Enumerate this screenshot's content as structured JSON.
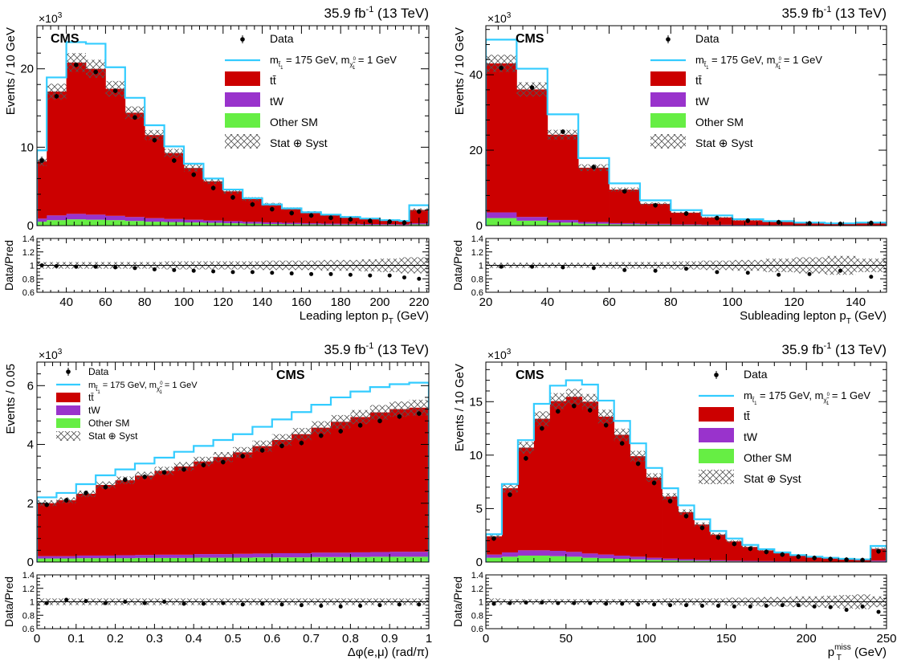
{
  "colors": {
    "ttbar": "#cc0000",
    "tW": "#9933cc",
    "other_sm": "#66ee44",
    "signal": "#33ccff",
    "data": "#000000",
    "band": "#555555"
  },
  "chart_data": [
    {
      "type": "bar",
      "experiment": "CMS",
      "lumi_text": "35.9 fb",
      "lumi_sup": "-1",
      "energy_text": " (13 TeV)",
      "yexp": "×10",
      "yexp_sup": "3",
      "xlabel_main": "Leading lepton p",
      "xlabel_sub": "T",
      "xlabel_unit": " (GeV)",
      "ylabel": "Events / 10 GeV",
      "ratio_ylabel": "Data/Pred",
      "xlim": [
        25,
        225
      ],
      "ylim": [
        0,
        25.5
      ],
      "yticks": [
        0,
        10,
        20
      ],
      "xticks": [
        40,
        60,
        80,
        100,
        120,
        140,
        160,
        180,
        200,
        220
      ],
      "ratio_ylim": [
        0.6,
        1.4
      ],
      "ratio_yticks": [
        "0.6",
        "0.8",
        "1",
        "1.2",
        "1.4"
      ],
      "bin_edges": [
        25,
        30,
        40,
        50,
        60,
        70,
        80,
        90,
        100,
        110,
        120,
        130,
        140,
        150,
        160,
        170,
        180,
        190,
        200,
        210,
        215,
        225
      ],
      "legend": {
        "data": "Data",
        "signal_prefix": "m",
        "signal_sub1": "t̃",
        "signal_sub2": "1",
        "signal_mid": " = 175 GeV, m",
        "signal_sub3": "χ̃",
        "signal_sub4": "1",
        "signal_sup4": "0",
        "signal_suffix": " = 1 GeV",
        "ttbar": "tt̄",
        "tW": "tW",
        "other_sm": "Other SM",
        "band": "Stat ⊕ Syst"
      },
      "series": {
        "other_sm": [
          0.5,
          0.7,
          0.8,
          0.75,
          0.7,
          0.6,
          0.5,
          0.45,
          0.4,
          0.35,
          0.3,
          0.25,
          0.2,
          0.18,
          0.15,
          0.13,
          0.12,
          0.1,
          0.09,
          0.08,
          0.15
        ],
        "tW": [
          0.4,
          0.6,
          0.7,
          0.65,
          0.55,
          0.5,
          0.45,
          0.4,
          0.35,
          0.3,
          0.27,
          0.23,
          0.2,
          0.17,
          0.15,
          0.13,
          0.11,
          0.1,
          0.09,
          0.08,
          0.15
        ],
        "ttbar": [
          7.3,
          15.8,
          19.3,
          18.6,
          16.2,
          13.3,
          10.6,
          8.4,
          6.6,
          5.0,
          3.8,
          2.9,
          2.3,
          1.8,
          1.4,
          1.1,
          0.9,
          0.7,
          0.55,
          0.4,
          1.7
        ],
        "band_half": [
          0.6,
          1.0,
          1.2,
          1.15,
          1.0,
          0.8,
          0.65,
          0.55,
          0.45,
          0.35,
          0.3,
          0.25,
          0.2,
          0.17,
          0.15,
          0.12,
          0.1,
          0.09,
          0.08,
          0.07,
          0.2
        ],
        "signal": [
          9.6,
          18.9,
          23.4,
          23.2,
          20.2,
          16.3,
          12.8,
          10.1,
          7.9,
          6.0,
          4.6,
          3.5,
          2.7,
          2.2,
          1.7,
          1.4,
          1.1,
          0.9,
          0.7,
          0.6,
          2.6
        ],
        "data": [
          8.3,
          16.5,
          20.5,
          19.6,
          17.2,
          13.8,
          10.9,
          8.3,
          6.5,
          4.8,
          3.6,
          2.7,
          2.1,
          1.6,
          1.3,
          1.0,
          0.8,
          0.6,
          0.5,
          0.38,
          1.8
        ],
        "ratio": [
          1.0,
          0.99,
          0.98,
          0.98,
          0.97,
          0.96,
          0.94,
          0.93,
          0.92,
          0.91,
          0.9,
          0.9,
          0.89,
          0.88,
          0.87,
          0.87,
          0.86,
          0.85,
          0.85,
          0.82,
          0.8
        ],
        "ratio_band": [
          0.05,
          0.05,
          0.05,
          0.05,
          0.05,
          0.05,
          0.05,
          0.06,
          0.06,
          0.06,
          0.06,
          0.06,
          0.07,
          0.07,
          0.07,
          0.08,
          0.08,
          0.09,
          0.1,
          0.12,
          0.12
        ]
      }
    },
    {
      "type": "bar",
      "experiment": "CMS",
      "lumi_text": "35.9 fb",
      "lumi_sup": "-1",
      "energy_text": " (13 TeV)",
      "yexp": "×10",
      "yexp_sup": "3",
      "xlabel_main": "Subleading lepton p",
      "xlabel_sub": "T",
      "xlabel_unit": " (GeV)",
      "ylabel": "Events / 10 GeV",
      "ratio_ylabel": "Data/Pred",
      "xlim": [
        20,
        150
      ],
      "ylim": [
        0,
        53
      ],
      "yticks": [
        0,
        20,
        40
      ],
      "xticks": [
        20,
        40,
        60,
        80,
        100,
        120,
        140
      ],
      "ratio_ylim": [
        0.6,
        1.4
      ],
      "ratio_yticks": [
        "0.6",
        "0.8",
        "1",
        "1.2",
        "1.4"
      ],
      "bin_edges": [
        20,
        30,
        40,
        50,
        60,
        70,
        80,
        90,
        100,
        110,
        120,
        130,
        140,
        150
      ],
      "legend": {
        "data": "Data",
        "signal_prefix": "m",
        "signal_sub1": "t̃",
        "signal_sub2": "1",
        "signal_mid": " = 175 GeV, m",
        "signal_sub3": "χ̃",
        "signal_sub4": "1",
        "signal_sup4": "0",
        "signal_suffix": " = 1 GeV",
        "ttbar": "tt̄",
        "tW": "tW",
        "other_sm": "Other SM",
        "band": "Stat ⊕ Syst"
      },
      "series": {
        "other_sm": [
          2.0,
          1.3,
          0.8,
          0.5,
          0.35,
          0.25,
          0.18,
          0.13,
          0.1,
          0.08,
          0.06,
          0.05,
          0.06
        ],
        "tW": [
          1.5,
          1.0,
          0.7,
          0.45,
          0.3,
          0.22,
          0.16,
          0.12,
          0.09,
          0.07,
          0.05,
          0.04,
          0.05
        ],
        "ttbar": [
          39.5,
          33.8,
          22.6,
          14.4,
          8.9,
          5.3,
          3.1,
          1.9,
          1.2,
          0.8,
          0.5,
          0.35,
          0.55
        ],
        "band_half": [
          2.3,
          1.9,
          1.3,
          0.9,
          0.55,
          0.35,
          0.22,
          0.15,
          0.1,
          0.08,
          0.06,
          0.05,
          0.06
        ],
        "signal": [
          49.3,
          41.6,
          29.5,
          17.9,
          11.2,
          6.7,
          4.1,
          2.7,
          1.7,
          1.2,
          0.8,
          0.6,
          0.8
        ],
        "data": [
          41.8,
          36.6,
          24.9,
          15.5,
          9.1,
          5.4,
          3.2,
          2.0,
          1.3,
          0.9,
          0.6,
          0.45,
          0.7
        ],
        "ratio": [
          0.98,
          0.98,
          0.97,
          0.96,
          0.93,
          0.92,
          0.95,
          0.9,
          0.89,
          0.86,
          0.87,
          0.92,
          0.83
        ],
        "ratio_band": [
          0.04,
          0.04,
          0.04,
          0.04,
          0.05,
          0.05,
          0.06,
          0.07,
          0.08,
          0.1,
          0.12,
          0.14,
          0.1
        ]
      }
    },
    {
      "type": "bar",
      "experiment": "CMS",
      "lumi_text": "35.9 fb",
      "lumi_sup": "-1",
      "energy_text": " (13 TeV)",
      "yexp": "×10",
      "yexp_sup": "3",
      "xlabel_main": "Δφ(e,μ) (rad/π)",
      "xlabel_sub": "",
      "xlabel_unit": "",
      "ylabel": "Events / 0.05",
      "ratio_ylabel": "Data/Pred",
      "xlim": [
        0,
        1
      ],
      "ylim": [
        0,
        6.8
      ],
      "yticks": [
        0,
        2,
        4,
        6
      ],
      "xticks": [
        0,
        0.1,
        0.2,
        0.3,
        0.4,
        0.5,
        0.6,
        0.7,
        0.8,
        0.9,
        1
      ],
      "ratio_ylim": [
        0.6,
        1.4
      ],
      "ratio_yticks": [
        "0.6",
        "0.8",
        "1",
        "1.2",
        "1.4"
      ],
      "bin_edges": [
        0,
        0.05,
        0.1,
        0.15,
        0.2,
        0.25,
        0.3,
        0.35,
        0.4,
        0.45,
        0.5,
        0.55,
        0.6,
        0.65,
        0.7,
        0.75,
        0.8,
        0.85,
        0.9,
        0.95,
        1
      ],
      "legend": {
        "data": "Data",
        "signal_prefix": "m",
        "signal_sub1": "t̃",
        "signal_sub2": "1",
        "signal_mid": " = 175 GeV, m",
        "signal_sub3": "χ̃",
        "signal_sub4": "1",
        "signal_sup4": "0",
        "signal_suffix": " = 1 GeV",
        "ttbar": "tt̄",
        "tW": "tW",
        "other_sm": "Other SM",
        "band": "Stat ⊕ Syst"
      },
      "series": {
        "other_sm": [
          0.12,
          0.12,
          0.13,
          0.13,
          0.13,
          0.14,
          0.14,
          0.14,
          0.15,
          0.15,
          0.15,
          0.16,
          0.16,
          0.16,
          0.17,
          0.17,
          0.17,
          0.18,
          0.18,
          0.18
        ],
        "tW": [
          0.08,
          0.08,
          0.09,
          0.09,
          0.1,
          0.1,
          0.11,
          0.11,
          0.12,
          0.12,
          0.13,
          0.13,
          0.14,
          0.14,
          0.15,
          0.15,
          0.16,
          0.16,
          0.17,
          0.17
        ],
        "ttbar": [
          1.8,
          1.9,
          2.1,
          2.4,
          2.55,
          2.7,
          2.85,
          3.0,
          3.15,
          3.3,
          3.45,
          3.65,
          3.85,
          4.05,
          4.25,
          4.45,
          4.6,
          4.75,
          4.85,
          4.9
        ],
        "band_half": [
          0.1,
          0.1,
          0.11,
          0.12,
          0.13,
          0.13,
          0.14,
          0.15,
          0.16,
          0.17,
          0.18,
          0.19,
          0.2,
          0.21,
          0.22,
          0.23,
          0.24,
          0.25,
          0.26,
          0.27
        ],
        "signal": [
          2.2,
          2.35,
          2.65,
          2.95,
          3.15,
          3.35,
          3.55,
          3.75,
          3.95,
          4.15,
          4.35,
          4.6,
          4.85,
          5.1,
          5.35,
          5.6,
          5.8,
          5.95,
          6.05,
          6.1
        ],
        "data": [
          1.95,
          2.1,
          2.35,
          2.55,
          2.8,
          2.9,
          3.05,
          3.15,
          3.3,
          3.4,
          3.6,
          3.8,
          3.95,
          4.05,
          4.3,
          4.45,
          4.65,
          4.8,
          4.95,
          5.05
        ],
        "ratio": [
          0.98,
          1.03,
          1.01,
          0.98,
          1.0,
          0.98,
          1.0,
          0.97,
          0.97,
          0.98,
          0.96,
          0.97,
          0.96,
          0.95,
          0.94,
          0.93,
          0.94,
          0.95,
          0.96,
          0.96
        ],
        "ratio_band": [
          0.05,
          0.05,
          0.05,
          0.05,
          0.05,
          0.05,
          0.05,
          0.05,
          0.05,
          0.05,
          0.05,
          0.05,
          0.05,
          0.05,
          0.05,
          0.05,
          0.05,
          0.05,
          0.05,
          0.05
        ]
      }
    },
    {
      "type": "bar",
      "experiment": "CMS",
      "lumi_text": "35.9 fb",
      "lumi_sup": "-1",
      "energy_text": " (13 TeV)",
      "yexp": "×10",
      "yexp_sup": "3",
      "xlabel_main": "p",
      "xlabel_sub": "T",
      "xlabel_sup": "miss",
      "xlabel_unit": " (GeV)",
      "ylabel": "Events / 10 GeV",
      "ratio_ylabel": "Data/Pred",
      "xlim": [
        0,
        250
      ],
      "ylim": [
        0,
        18.7
      ],
      "yticks": [
        0,
        5,
        10,
        15
      ],
      "xticks": [
        0,
        50,
        100,
        150,
        200,
        250
      ],
      "ratio_ylim": [
        0.6,
        1.4
      ],
      "ratio_yticks": [
        "0.6",
        "0.8",
        "1",
        "1.2",
        "1.4"
      ],
      "bin_edges": [
        0,
        10,
        20,
        30,
        40,
        50,
        60,
        70,
        80,
        90,
        100,
        110,
        120,
        130,
        140,
        150,
        160,
        170,
        180,
        190,
        200,
        210,
        220,
        230,
        240,
        250
      ],
      "legend": {
        "data": "Data",
        "signal_prefix": "m",
        "signal_sub1": "t̃",
        "signal_sub2": "1",
        "signal_mid": " = 175 GeV, m",
        "signal_sub3": "χ̃",
        "signal_sub4": "1",
        "signal_sup4": "0",
        "signal_suffix": " = 1 GeV",
        "ttbar": "tt̄",
        "tW": "tW",
        "other_sm": "Other SM",
        "band": "Stat ⊕ Syst"
      },
      "series": {
        "other_sm": [
          0.4,
          0.5,
          0.6,
          0.6,
          0.55,
          0.5,
          0.4,
          0.35,
          0.3,
          0.25,
          0.2,
          0.15,
          0.12,
          0.1,
          0.08,
          0.06,
          0.05,
          0.04,
          0.03,
          0.03,
          0.02,
          0.02,
          0.02,
          0.02,
          0.05
        ],
        "tW": [
          0.3,
          0.4,
          0.5,
          0.5,
          0.5,
          0.45,
          0.4,
          0.35,
          0.3,
          0.25,
          0.2,
          0.17,
          0.14,
          0.11,
          0.09,
          0.07,
          0.06,
          0.05,
          0.04,
          0.03,
          0.03,
          0.02,
          0.02,
          0.02,
          0.08
        ],
        "ttbar": [
          1.7,
          6.0,
          9.6,
          12.3,
          14.0,
          14.5,
          14.2,
          12.9,
          11.3,
          9.4,
          7.5,
          5.8,
          4.4,
          3.3,
          2.4,
          1.8,
          1.3,
          1.0,
          0.75,
          0.55,
          0.4,
          0.3,
          0.25,
          0.2,
          1.1
        ],
        "band_half": [
          0.2,
          0.4,
          0.55,
          0.7,
          0.75,
          0.75,
          0.72,
          0.65,
          0.58,
          0.5,
          0.4,
          0.32,
          0.26,
          0.2,
          0.15,
          0.12,
          0.1,
          0.08,
          0.06,
          0.05,
          0.04,
          0.04,
          0.04,
          0.04,
          0.12
        ],
        "signal": [
          2.6,
          7.3,
          11.4,
          14.8,
          16.5,
          17.0,
          16.6,
          15.1,
          13.2,
          11.1,
          8.8,
          6.9,
          5.3,
          4.0,
          2.9,
          2.2,
          1.6,
          1.2,
          0.9,
          0.65,
          0.5,
          0.4,
          0.3,
          0.25,
          1.5
        ],
        "data": [
          2.2,
          6.3,
          9.7,
          12.5,
          14.1,
          14.6,
          14.2,
          12.8,
          11.1,
          9.2,
          7.4,
          5.7,
          4.3,
          3.2,
          2.3,
          1.7,
          1.25,
          0.95,
          0.7,
          0.5,
          0.38,
          0.28,
          0.22,
          0.18,
          1.0
        ],
        "ratio": [
          0.97,
          0.98,
          0.99,
          0.99,
          0.98,
          0.98,
          0.98,
          0.97,
          0.97,
          0.96,
          0.96,
          0.95,
          0.95,
          0.94,
          0.94,
          0.93,
          0.93,
          0.94,
          0.95,
          0.95,
          0.93,
          0.92,
          0.88,
          0.93,
          0.85
        ],
        "ratio_band": [
          0.05,
          0.04,
          0.04,
          0.04,
          0.04,
          0.04,
          0.04,
          0.04,
          0.04,
          0.04,
          0.04,
          0.05,
          0.05,
          0.05,
          0.05,
          0.06,
          0.06,
          0.07,
          0.07,
          0.08,
          0.08,
          0.09,
          0.1,
          0.11,
          0.08
        ]
      }
    }
  ]
}
